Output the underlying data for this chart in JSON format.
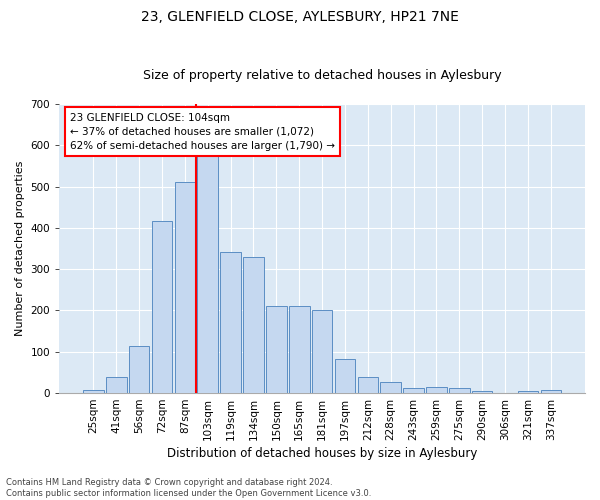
{
  "title": "23, GLENFIELD CLOSE, AYLESBURY, HP21 7NE",
  "subtitle": "Size of property relative to detached houses in Aylesbury",
  "xlabel": "Distribution of detached houses by size in Aylesbury",
  "ylabel": "Number of detached properties",
  "categories": [
    "25sqm",
    "41sqm",
    "56sqm",
    "72sqm",
    "87sqm",
    "103sqm",
    "119sqm",
    "134sqm",
    "150sqm",
    "165sqm",
    "181sqm",
    "197sqm",
    "212sqm",
    "228sqm",
    "243sqm",
    "259sqm",
    "275sqm",
    "290sqm",
    "306sqm",
    "321sqm",
    "337sqm"
  ],
  "values": [
    8,
    38,
    113,
    416,
    510,
    578,
    342,
    330,
    210,
    210,
    200,
    82,
    40,
    26,
    13,
    14,
    13,
    5,
    0,
    5,
    7
  ],
  "bar_color": "#c5d8f0",
  "bar_edge_color": "#5b8ec4",
  "vline_index": 5,
  "vline_color": "red",
  "annotation_text": "23 GLENFIELD CLOSE: 104sqm\n← 37% of detached houses are smaller (1,072)\n62% of semi-detached houses are larger (1,790) →",
  "annotation_box_facecolor": "white",
  "annotation_box_edgecolor": "red",
  "ylim": [
    0,
    700
  ],
  "yticks": [
    0,
    100,
    200,
    300,
    400,
    500,
    600,
    700
  ],
  "fig_bg_color": "#ffffff",
  "plot_bg_color": "#dce9f5",
  "footnote": "Contains HM Land Registry data © Crown copyright and database right 2024.\nContains public sector information licensed under the Open Government Licence v3.0.",
  "title_fontsize": 10,
  "subtitle_fontsize": 9,
  "xlabel_fontsize": 8.5,
  "ylabel_fontsize": 8,
  "tick_fontsize": 7.5,
  "annot_fontsize": 7.5,
  "footnote_fontsize": 6
}
